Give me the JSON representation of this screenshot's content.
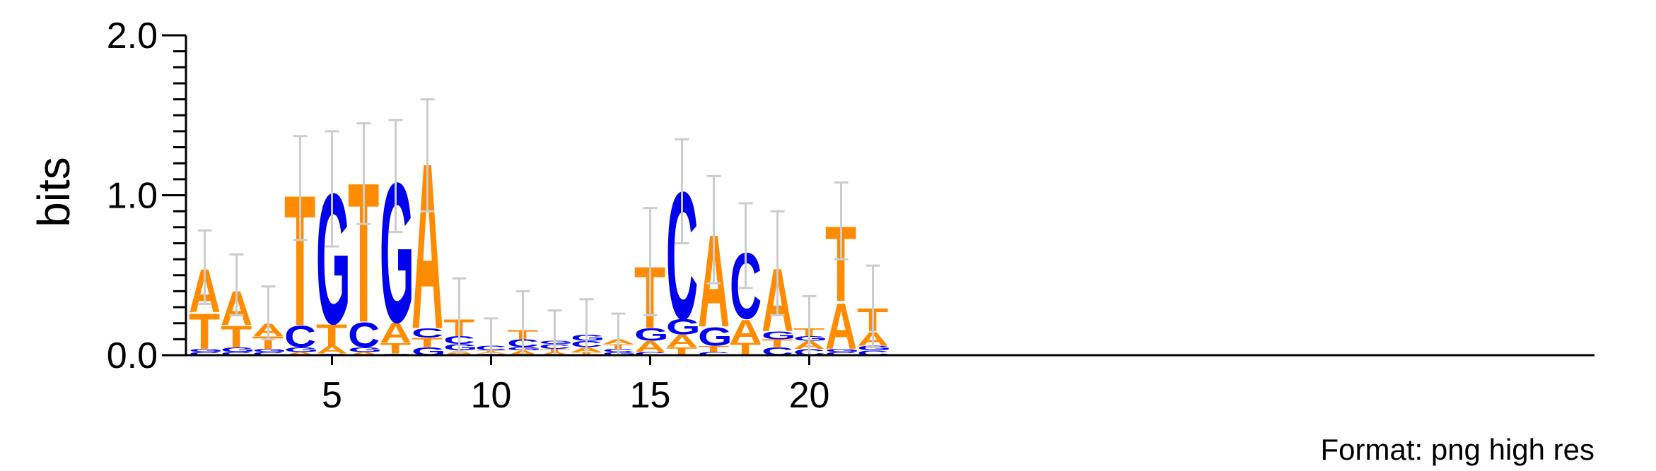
{
  "chart_data": {
    "type": "sequence-logo",
    "ylabel": "bits",
    "ylim": [
      0,
      2
    ],
    "y_ticks": [
      "0.0",
      "1.0",
      "2.0"
    ],
    "x_ticks": [
      "5",
      "10",
      "15",
      "20"
    ],
    "x_tick_positions": [
      5,
      10,
      15,
      20
    ],
    "positions": 22,
    "colors": {
      "A": "#ff8c00",
      "T": "#ff8c00",
      "C": "#0000ee",
      "G": "#0000ee"
    },
    "columns": [
      {
        "pos": 1,
        "letters": [
          [
            "C",
            0.02
          ],
          [
            "G",
            0.02
          ],
          [
            "T",
            0.23
          ],
          [
            "A",
            0.28
          ]
        ],
        "error": [
          0.32,
          0.78
        ]
      },
      {
        "pos": 2,
        "letters": [
          [
            "C",
            0.02
          ],
          [
            "G",
            0.03
          ],
          [
            "T",
            0.14
          ],
          [
            "A",
            0.22
          ]
        ],
        "error": [
          0.25,
          0.63
        ]
      },
      {
        "pos": 3,
        "letters": [
          [
            "C",
            0.02
          ],
          [
            "G",
            0.02
          ],
          [
            "T",
            0.08
          ],
          [
            "A",
            0.08
          ]
        ],
        "error": [
          0.1,
          0.43
        ]
      },
      {
        "pos": 4,
        "letters": [
          [
            "A",
            0.02
          ],
          [
            "G",
            0.03
          ],
          [
            "C",
            0.14
          ],
          [
            "T",
            0.85
          ]
        ],
        "error": [
          0.72,
          1.37
        ]
      },
      {
        "pos": 5,
        "letters": [
          [
            "C",
            0.01
          ],
          [
            "A",
            0.05
          ],
          [
            "T",
            0.14
          ],
          [
            "G",
            0.85
          ]
        ],
        "error": [
          0.68,
          1.4
        ]
      },
      {
        "pos": 6,
        "letters": [
          [
            "A",
            0.02
          ],
          [
            "G",
            0.03
          ],
          [
            "C",
            0.16
          ],
          [
            "T",
            0.91
          ]
        ],
        "error": [
          0.82,
          1.45
        ]
      },
      {
        "pos": 7,
        "letters": [
          [
            "C",
            0.01
          ],
          [
            "T",
            0.07
          ],
          [
            "A",
            0.13
          ],
          [
            "G",
            0.91
          ]
        ],
        "error": [
          0.77,
          1.47
        ]
      },
      {
        "pos": 8,
        "letters": [
          [
            "G",
            0.05
          ],
          [
            "T",
            0.06
          ],
          [
            "C",
            0.06
          ],
          [
            "A",
            1.08
          ]
        ],
        "error": [
          0.9,
          1.6
        ]
      },
      {
        "pos": 9,
        "letters": [
          [
            "A",
            0.03
          ],
          [
            "G",
            0.04
          ],
          [
            "C",
            0.05
          ],
          [
            "T",
            0.11
          ]
        ],
        "error": [
          0.02,
          0.48
        ]
      },
      {
        "pos": 10,
        "letters": [
          [
            "G",
            0.01
          ],
          [
            "A",
            0.01
          ],
          [
            "T",
            0.01
          ],
          [
            "C",
            0.03
          ]
        ],
        "error": [
          0.0,
          0.23
        ]
      },
      {
        "pos": 11,
        "letters": [
          [
            "A",
            0.03
          ],
          [
            "G",
            0.02
          ],
          [
            "C",
            0.05
          ],
          [
            "T",
            0.06
          ]
        ],
        "error": [
          0.0,
          0.4
        ]
      },
      {
        "pos": 12,
        "letters": [
          [
            "A",
            0.02
          ],
          [
            "T",
            0.02
          ],
          [
            "C",
            0.03
          ],
          [
            "G",
            0.02
          ]
        ],
        "error": [
          0.0,
          0.28
        ]
      },
      {
        "pos": 13,
        "letters": [
          [
            "T",
            0.02
          ],
          [
            "A",
            0.03
          ],
          [
            "C",
            0.04
          ],
          [
            "G",
            0.04
          ]
        ],
        "error": [
          0.0,
          0.35
        ]
      },
      {
        "pos": 14,
        "letters": [
          [
            "G",
            0.02
          ],
          [
            "C",
            0.02
          ],
          [
            "T",
            0.03
          ],
          [
            "A",
            0.03
          ]
        ],
        "error": [
          0.0,
          0.26
        ]
      },
      {
        "pos": 15,
        "letters": [
          [
            "C",
            0.02
          ],
          [
            "A",
            0.07
          ],
          [
            "G",
            0.08
          ],
          [
            "T",
            0.4
          ]
        ],
        "error": [
          0.25,
          0.92
        ]
      },
      {
        "pos": 16,
        "letters": [
          [
            "T",
            0.05
          ],
          [
            "A",
            0.08
          ],
          [
            "G",
            0.1
          ],
          [
            "C",
            0.83
          ]
        ],
        "error": [
          0.7,
          1.35
        ]
      },
      {
        "pos": 17,
        "letters": [
          [
            "C",
            0.02
          ],
          [
            "T",
            0.04
          ],
          [
            "G",
            0.12
          ],
          [
            "A",
            0.6
          ]
        ],
        "error": [
          0.45,
          1.12
        ]
      },
      {
        "pos": 18,
        "letters": [
          [
            "T",
            0.08
          ],
          [
            "A",
            0.15
          ],
          [
            "C",
            0.43
          ]
        ],
        "error": [
          0.42,
          0.95
        ]
      },
      {
        "pos": 19,
        "letters": [
          [
            "C",
            0.05
          ],
          [
            "T",
            0.05
          ],
          [
            "G",
            0.05
          ],
          [
            "A",
            0.41
          ]
        ],
        "error": [
          0.25,
          0.9
        ]
      },
      {
        "pos": 20,
        "letters": [
          [
            "C",
            0.04
          ],
          [
            "A",
            0.05
          ],
          [
            "G",
            0.03
          ],
          [
            "T",
            0.05
          ]
        ],
        "error": [
          0.0,
          0.37
        ]
      },
      {
        "pos": 21,
        "letters": [
          [
            "C",
            0.02
          ],
          [
            "G",
            0.02
          ],
          [
            "A",
            0.3
          ],
          [
            "T",
            0.49
          ]
        ],
        "error": [
          0.6,
          1.08
        ]
      },
      {
        "pos": 22,
        "letters": [
          [
            "C",
            0.03
          ],
          [
            "G",
            0.03
          ],
          [
            "A",
            0.09
          ],
          [
            "T",
            0.15
          ]
        ],
        "error": [
          0.05,
          0.56
        ]
      }
    ]
  },
  "footer": {
    "format_note": "Format: png high res"
  }
}
